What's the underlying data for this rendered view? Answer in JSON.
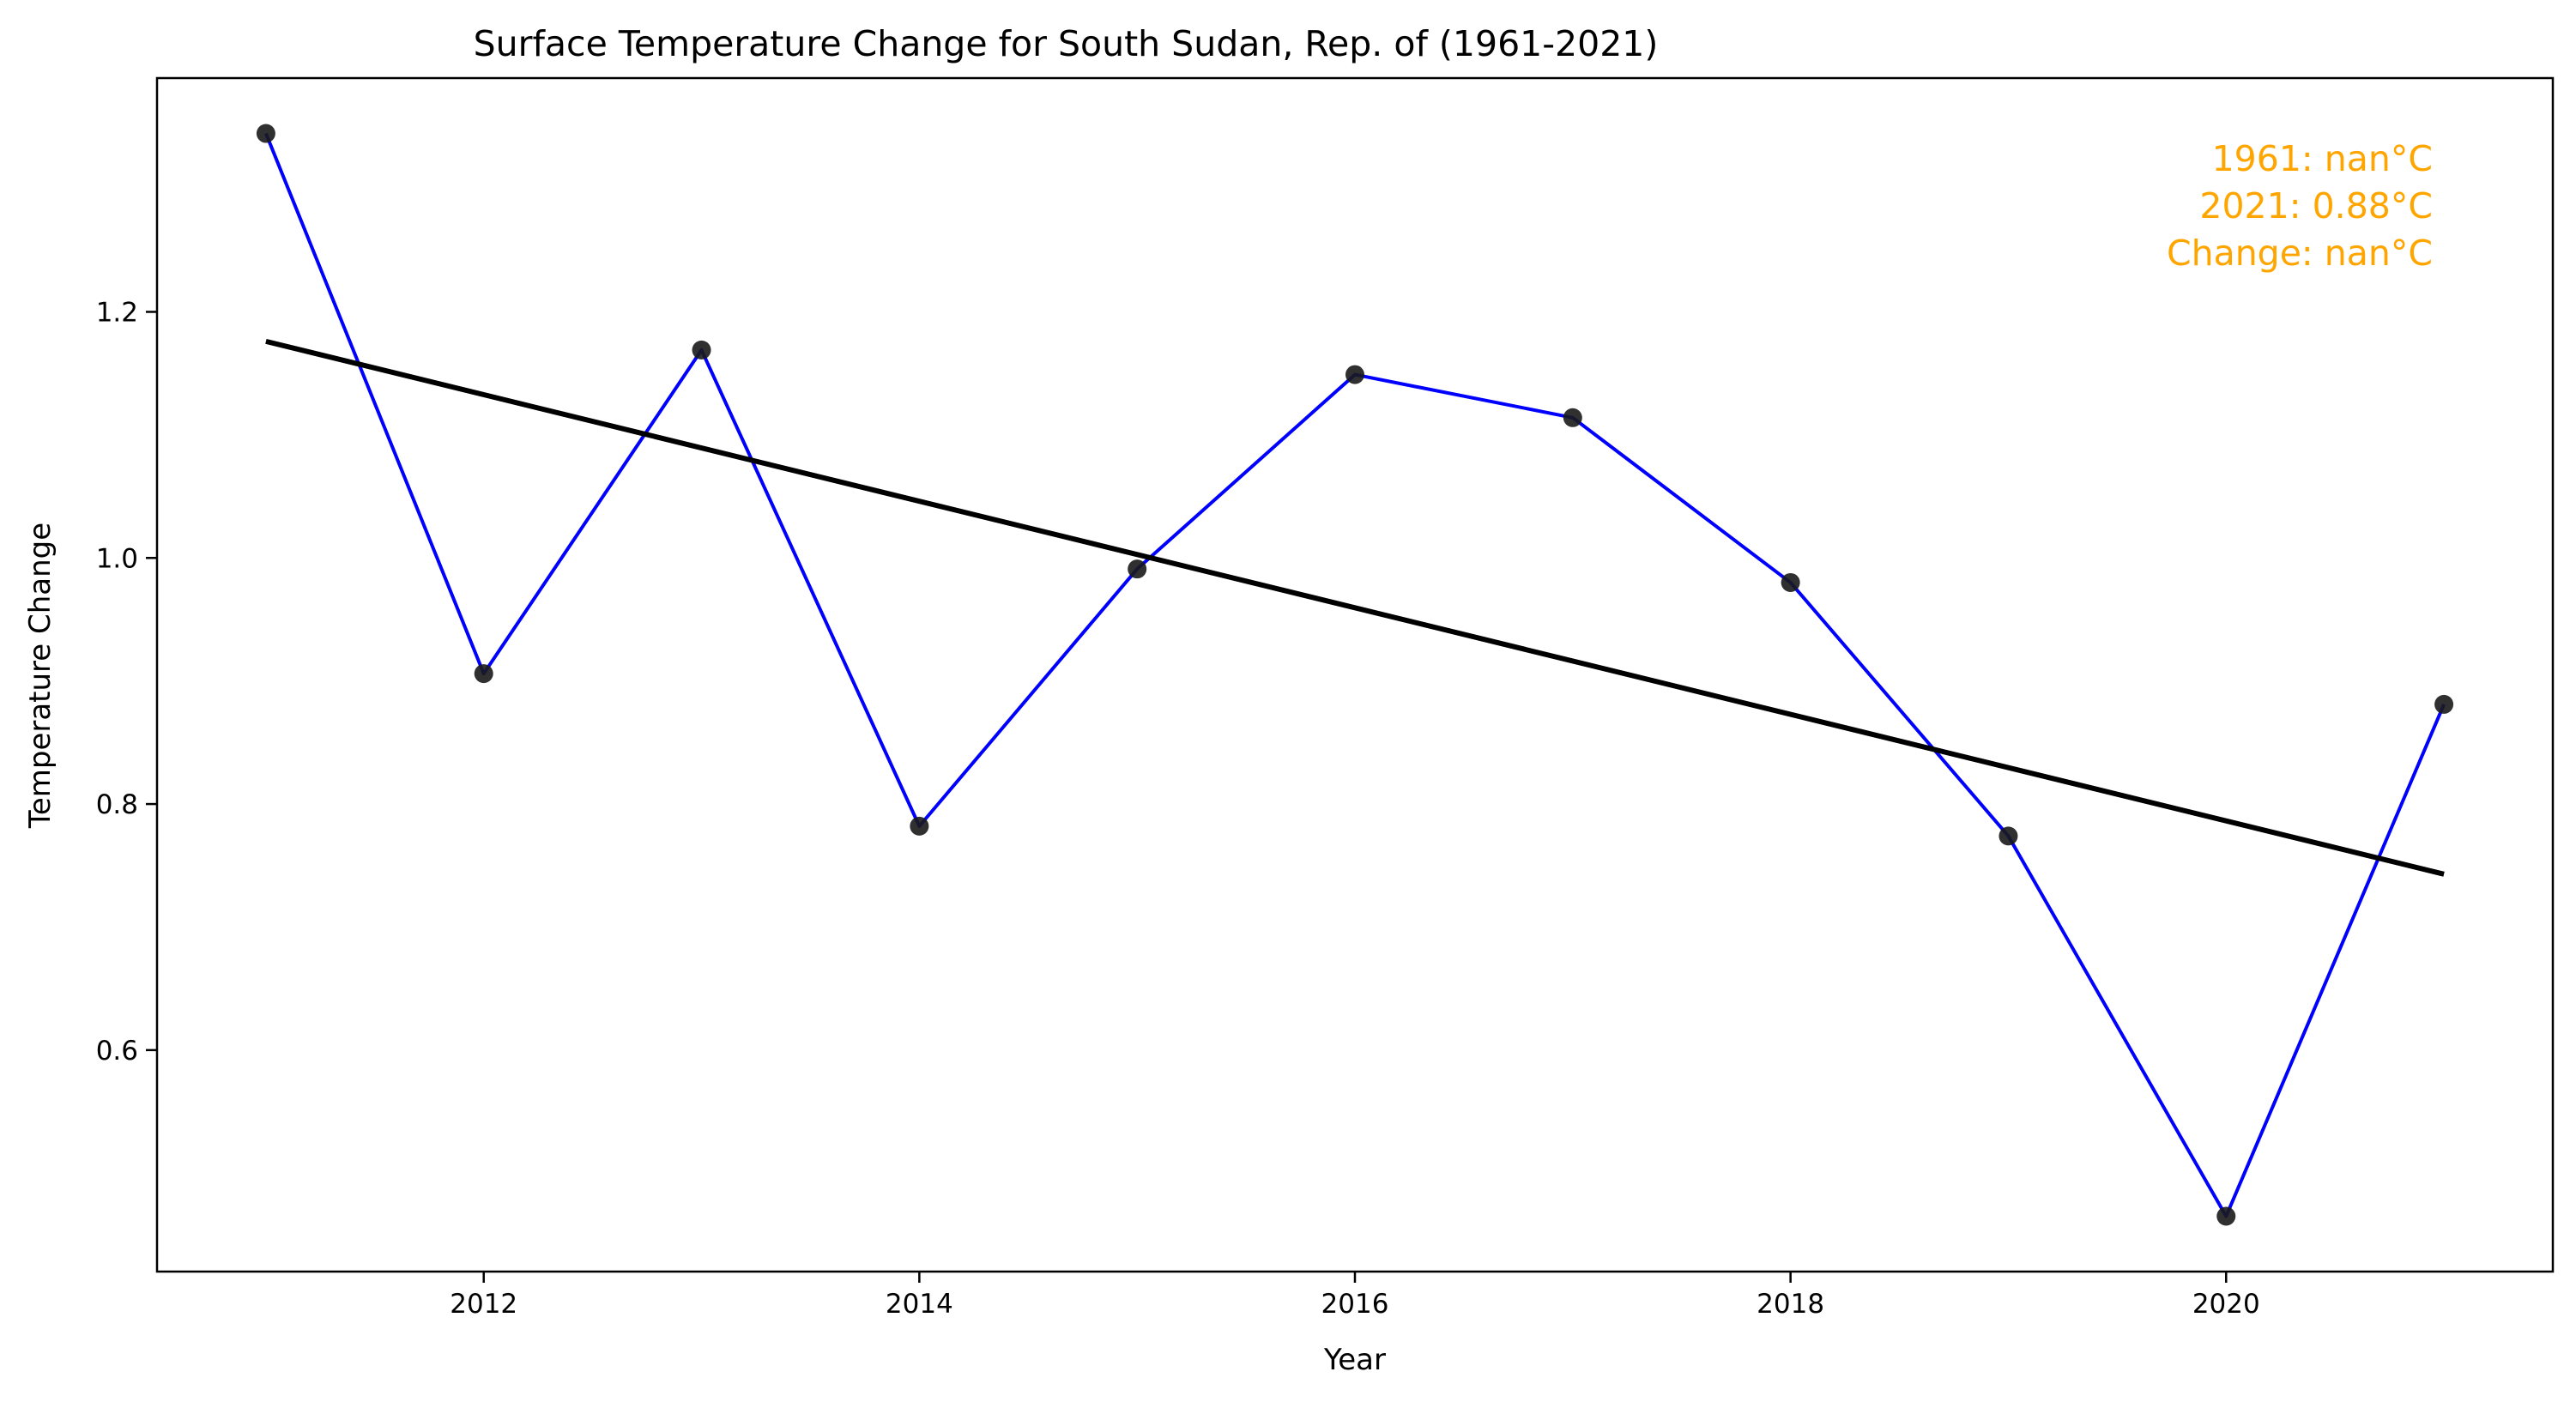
{
  "chart_data": {
    "type": "line",
    "title": "Surface Temperature Change for South Sudan, Rep. of (1961-2021)",
    "xlabel": "Year",
    "ylabel": "Temperature Change",
    "x": [
      2011,
      2012,
      2013,
      2014,
      2015,
      2016,
      2017,
      2018,
      2019,
      2020,
      2021
    ],
    "series": [
      {
        "type": "line",
        "color": "#0000ff",
        "marker_color": "#1a1a1a",
        "values": [
          1.345,
          0.906,
          1.169,
          0.782,
          0.991,
          1.149,
          1.114,
          0.98,
          0.774,
          0.465,
          0.881
        ]
      },
      {
        "type": "trend",
        "color": "#000000",
        "x": [
          2011,
          2021
        ],
        "values": [
          1.176,
          0.743
        ]
      }
    ],
    "xlim": [
      2010.5,
      2021.5
    ],
    "ylim": [
      0.42,
      1.39
    ],
    "xticks": [
      2012,
      2014,
      2016,
      2018,
      2020
    ],
    "yticks": [
      0.6,
      0.8,
      1.0,
      1.2
    ],
    "ytick_labels": [
      "0.6",
      "0.8",
      "1.0",
      "1.2"
    ],
    "grid": false,
    "annotations": {
      "color": "#ffa500",
      "lines": [
        "1961: nan°C",
        "2021: 0.88°C",
        "Change: nan°C"
      ]
    }
  }
}
